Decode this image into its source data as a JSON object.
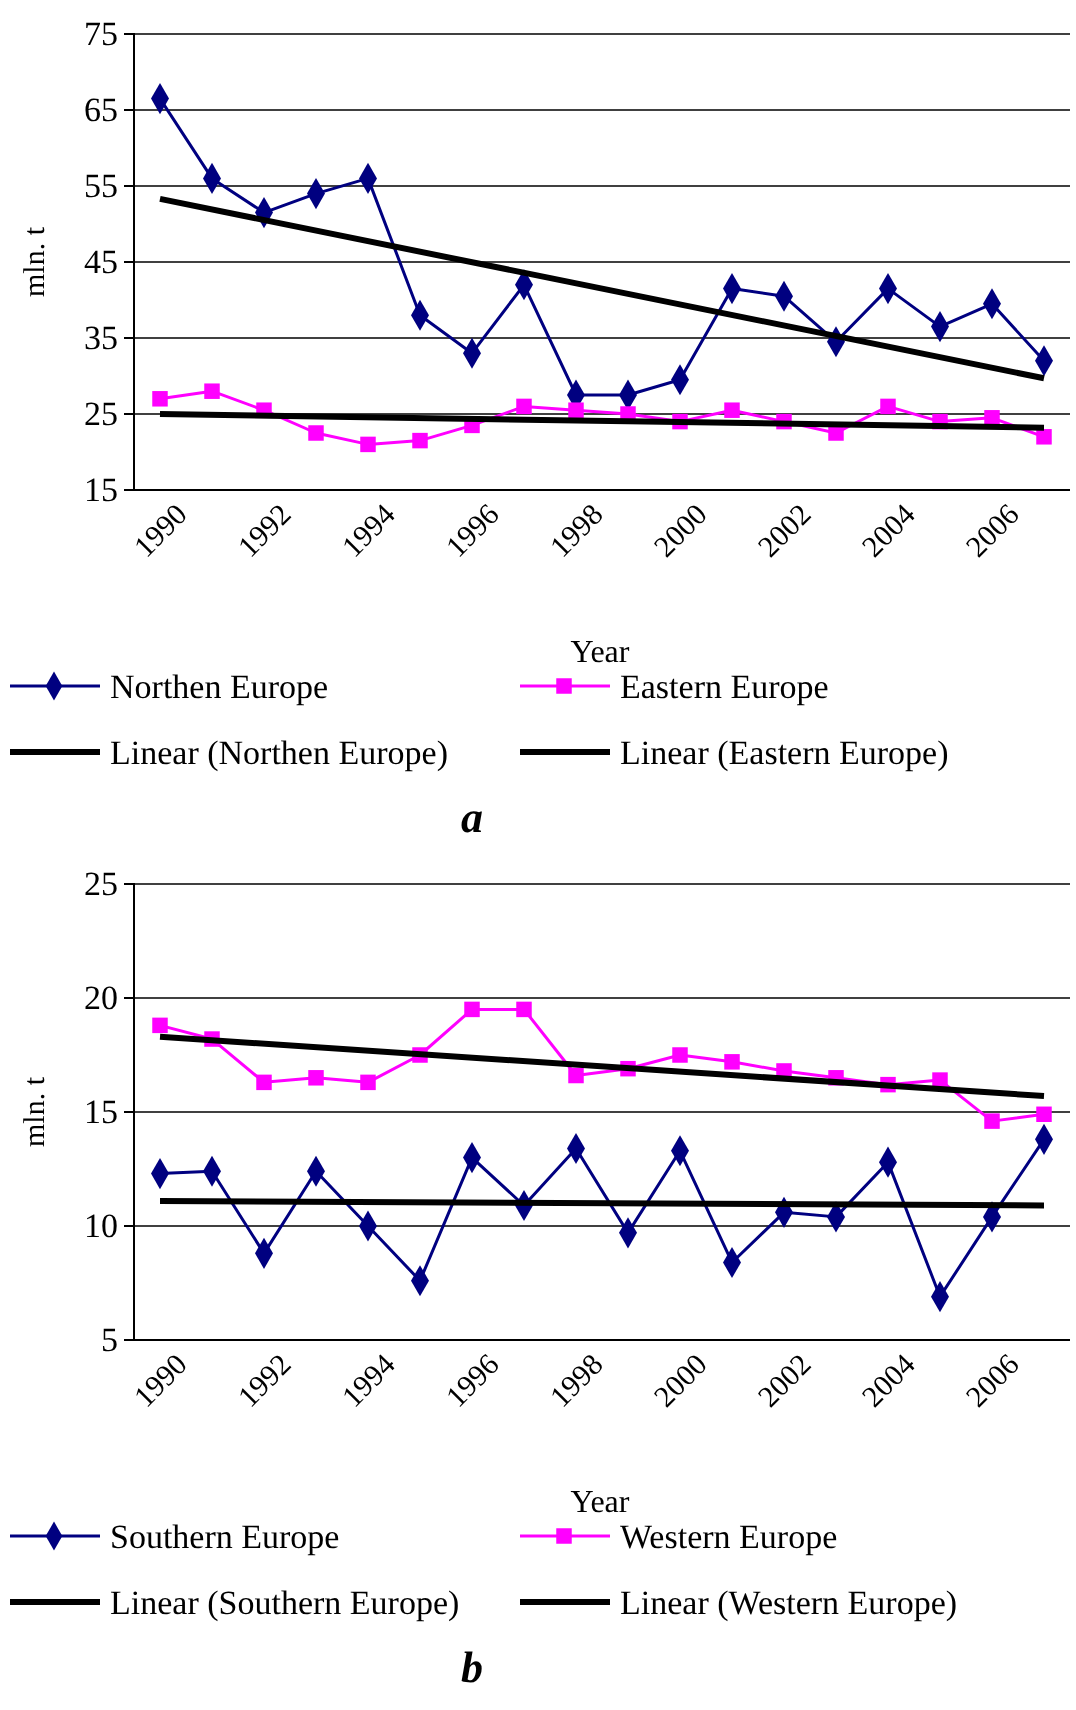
{
  "chart_data": [
    {
      "type": "line",
      "title": "a",
      "xlabel": "Year",
      "ylabel": "mln. t",
      "xlim": [
        1989.5,
        2007.5
      ],
      "xticks": [
        1990,
        1992,
        1994,
        1996,
        1998,
        2000,
        2002,
        2004,
        2006
      ],
      "ylim": [
        15,
        75
      ],
      "yticks": [
        15,
        25,
        35,
        45,
        55,
        65,
        75
      ],
      "grid": "y",
      "legend": "bottom",
      "series": [
        {
          "name": "Northen Europe",
          "color": "#000080",
          "marker": "diamond",
          "x": [
            1990,
            1991,
            1992,
            1993,
            1994,
            1995,
            1996,
            1997,
            1998,
            1999,
            2000,
            2001,
            2002,
            2003,
            2004,
            2005,
            2006,
            2007
          ],
          "values": [
            66.5,
            56,
            51.5,
            54,
            56,
            38,
            33,
            42,
            27.5,
            27.5,
            29.5,
            41.5,
            40.5,
            34.5,
            41.5,
            36.5,
            39.5,
            32
          ]
        },
        {
          "name": "Eastern Europe",
          "color": "#ff00ff",
          "marker": "square",
          "x": [
            1990,
            1991,
            1992,
            1993,
            1994,
            1995,
            1996,
            1997,
            1998,
            1999,
            2000,
            2001,
            2002,
            2003,
            2004,
            2005,
            2006,
            2007
          ],
          "values": [
            27,
            28,
            25.5,
            22.5,
            21,
            21.5,
            23.5,
            26,
            25.5,
            25,
            24,
            25.5,
            24,
            22.5,
            26,
            24,
            24.5,
            22
          ]
        },
        {
          "name": "Linear (Northen Europe)",
          "color": "#000000",
          "marker": "none",
          "x": [
            1990,
            2007
          ],
          "values": [
            53.3,
            29.7
          ]
        },
        {
          "name": "Linear (Eastern Europe)",
          "color": "#000000",
          "marker": "none",
          "x": [
            1990,
            2007
          ],
          "values": [
            25,
            23.2
          ]
        }
      ]
    },
    {
      "type": "line",
      "title": "b",
      "xlabel": "Year",
      "ylabel": "mln. t",
      "xlim": [
        1989.5,
        2007.5
      ],
      "xticks": [
        1990,
        1992,
        1994,
        1996,
        1998,
        2000,
        2002,
        2004,
        2006
      ],
      "ylim": [
        5,
        25
      ],
      "yticks": [
        5,
        10,
        15,
        20,
        25
      ],
      "grid": "y",
      "legend": "bottom",
      "series": [
        {
          "name": "Southern Europe",
          "color": "#000080",
          "marker": "diamond",
          "x": [
            1990,
            1991,
            1992,
            1993,
            1994,
            1995,
            1996,
            1997,
            1998,
            1999,
            2000,
            2001,
            2002,
            2003,
            2004,
            2005,
            2006,
            2007
          ],
          "values": [
            12.3,
            12.4,
            8.8,
            12.4,
            10,
            7.6,
            13,
            10.9,
            13.4,
            9.7,
            13.3,
            8.4,
            10.6,
            10.4,
            12.8,
            6.9,
            10.4,
            13.8
          ]
        },
        {
          "name": "Western Europe",
          "color": "#ff00ff",
          "marker": "square",
          "x": [
            1990,
            1991,
            1992,
            1993,
            1994,
            1995,
            1996,
            1997,
            1998,
            1999,
            2000,
            2001,
            2002,
            2003,
            2004,
            2005,
            2006,
            2007
          ],
          "values": [
            18.8,
            18.2,
            16.3,
            16.5,
            16.3,
            17.5,
            19.5,
            19.5,
            16.6,
            16.9,
            17.5,
            17.2,
            16.8,
            16.5,
            16.2,
            16.4,
            14.6,
            14.9
          ]
        },
        {
          "name": "Linear (Southern Europe)",
          "color": "#000000",
          "marker": "none",
          "x": [
            1990,
            2007
          ],
          "values": [
            11.1,
            10.9
          ]
        },
        {
          "name": "Linear (Western Europe)",
          "color": "#000000",
          "marker": "none",
          "x": [
            1990,
            2007
          ],
          "values": [
            18.3,
            15.7
          ]
        }
      ]
    }
  ]
}
